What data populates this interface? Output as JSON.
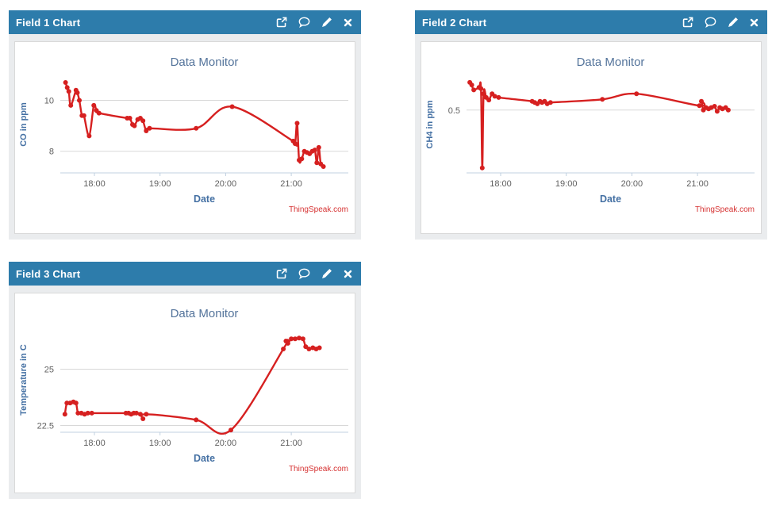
{
  "colors": {
    "header_bg": "#2d7cab",
    "header_text": "#ffffff",
    "panel_bg": "#eaecee",
    "chart_border": "#d9d9d9",
    "chart_title": "#54749b",
    "axis_title": "#4470a3",
    "tick": "#606060",
    "grid": "#d8d8d8",
    "axis": "#c0d0e0",
    "line": "#d62020",
    "credits": "#d63333"
  },
  "panels": [
    {
      "title": "Field 1 Chart",
      "icons": [
        "external-link",
        "comment",
        "edit",
        "close"
      ]
    },
    {
      "title": "Field 2 Chart",
      "icons": [
        "external-link",
        "comment",
        "edit",
        "close"
      ]
    },
    {
      "title": "Field 3 Chart",
      "icons": [
        "external-link",
        "comment",
        "edit",
        "close"
      ]
    }
  ],
  "chart_data": [
    {
      "type": "line",
      "title": "Data Monitor",
      "xlabel": "Date",
      "ylabel": "CO in ppm",
      "credits": "ThingSpeak.com",
      "x_unit": "hour_of_day_decimal",
      "xlim": [
        17.48,
        21.87
      ],
      "ylim": [
        7.15,
        10.95
      ],
      "grid": "horizontal-only",
      "legend": "none",
      "xticks": [
        {
          "v": 18,
          "label": "18:00"
        },
        {
          "v": 19,
          "label": "19:00"
        },
        {
          "v": 20,
          "label": "20:00"
        },
        {
          "v": 21,
          "label": "21:00"
        }
      ],
      "yticks": [
        {
          "v": 8,
          "label": "8"
        },
        {
          "v": 10,
          "label": "10"
        }
      ],
      "series": [
        {
          "name": "CO",
          "points": [
            [
              17.56,
              10.7
            ],
            [
              17.585,
              10.5
            ],
            [
              17.61,
              10.35
            ],
            [
              17.64,
              9.8
            ],
            [
              17.72,
              10.4
            ],
            [
              17.74,
              10.3
            ],
            [
              17.77,
              10.0
            ],
            [
              17.81,
              9.4
            ],
            [
              17.84,
              9.4
            ],
            [
              17.92,
              8.6
            ],
            [
              17.99,
              9.8
            ],
            [
              18.03,
              9.6
            ],
            [
              18.07,
              9.5
            ],
            [
              18.5,
              9.3
            ],
            [
              18.54,
              9.3
            ],
            [
              18.58,
              9.05
            ],
            [
              18.61,
              9.0
            ],
            [
              18.66,
              9.25
            ],
            [
              18.7,
              9.3
            ],
            [
              18.74,
              9.2
            ],
            [
              18.79,
              8.8
            ],
            [
              18.84,
              8.9
            ],
            [
              19.55,
              8.9
            ],
            [
              20.1,
              9.75
            ],
            [
              21.03,
              8.4
            ],
            [
              21.06,
              8.3
            ],
            [
              21.09,
              9.1
            ],
            [
              21.12,
              7.65
            ],
            [
              21.16,
              7.7
            ],
            [
              21.2,
              8.0
            ],
            [
              21.24,
              7.95
            ],
            [
              21.28,
              7.9
            ],
            [
              21.32,
              8.0
            ],
            [
              21.36,
              8.05
            ],
            [
              21.39,
              7.55
            ],
            [
              21.42,
              8.15
            ],
            [
              21.45,
              7.5
            ],
            [
              21.49,
              7.4
            ]
          ]
        }
      ]
    },
    {
      "type": "line",
      "title": "Data Monitor",
      "xlabel": "Date",
      "ylabel": "CH4 in ppm",
      "credits": "ThingSpeak.com",
      "x_unit": "hour_of_day_decimal",
      "xlim": [
        17.48,
        21.87
      ],
      "ylim": [
        0.0,
        0.77
      ],
      "grid": "horizontal-only",
      "legend": "none",
      "xticks": [
        {
          "v": 18,
          "label": "18:00"
        },
        {
          "v": 19,
          "label": "19:00"
        },
        {
          "v": 20,
          "label": "20:00"
        },
        {
          "v": 21,
          "label": "21:00"
        }
      ],
      "yticks": [
        {
          "v": 0.5,
          "label": "0.5"
        }
      ],
      "series": [
        {
          "name": "CH4",
          "points": [
            [
              17.53,
              0.72
            ],
            [
              17.56,
              0.7
            ],
            [
              17.59,
              0.66
            ],
            [
              17.67,
              0.68
            ],
            [
              17.7,
              0.67
            ],
            [
              17.72,
              0.04
            ],
            [
              17.74,
              0.63
            ],
            [
              17.78,
              0.6
            ],
            [
              17.82,
              0.58
            ],
            [
              17.87,
              0.63
            ],
            [
              17.91,
              0.61
            ],
            [
              17.97,
              0.6
            ],
            [
              18.48,
              0.57
            ],
            [
              18.52,
              0.56
            ],
            [
              18.56,
              0.55
            ],
            [
              18.6,
              0.57
            ],
            [
              18.63,
              0.56
            ],
            [
              18.67,
              0.57
            ],
            [
              18.71,
              0.55
            ],
            [
              18.76,
              0.56
            ],
            [
              19.55,
              0.585
            ],
            [
              20.07,
              0.63
            ],
            [
              21.03,
              0.535
            ],
            [
              21.06,
              0.57
            ],
            [
              21.09,
              0.5
            ],
            [
              21.13,
              0.52
            ],
            [
              21.17,
              0.51
            ],
            [
              21.21,
              0.52
            ],
            [
              21.26,
              0.53
            ],
            [
              21.3,
              0.49
            ],
            [
              21.34,
              0.52
            ],
            [
              21.38,
              0.51
            ],
            [
              21.43,
              0.52
            ],
            [
              21.47,
              0.5
            ]
          ]
        }
      ]
    },
    {
      "type": "line",
      "title": "Data Monitor",
      "xlabel": "Date",
      "ylabel": "Temperature in C",
      "credits": "ThingSpeak.com",
      "x_unit": "hour_of_day_decimal",
      "xlim": [
        17.48,
        21.87
      ],
      "ylim": [
        22.2,
        26.85
      ],
      "grid": "horizontal-only",
      "legend": "none",
      "xticks": [
        {
          "v": 18,
          "label": "18:00"
        },
        {
          "v": 19,
          "label": "19:00"
        },
        {
          "v": 20,
          "label": "20:00"
        },
        {
          "v": 21,
          "label": "21:00"
        }
      ],
      "yticks": [
        {
          "v": 22.5,
          "label": "22.5"
        },
        {
          "v": 25,
          "label": "25"
        }
      ],
      "series": [
        {
          "name": "Temperature",
          "points": [
            [
              17.55,
              23.0
            ],
            [
              17.58,
              23.5
            ],
            [
              17.63,
              23.5
            ],
            [
              17.68,
              23.55
            ],
            [
              17.72,
              23.5
            ],
            [
              17.75,
              23.05
            ],
            [
              17.8,
              23.05
            ],
            [
              17.85,
              23.0
            ],
            [
              17.9,
              23.05
            ],
            [
              17.96,
              23.05
            ],
            [
              18.48,
              23.05
            ],
            [
              18.52,
              23.05
            ],
            [
              18.56,
              23.0
            ],
            [
              18.6,
              23.05
            ],
            [
              18.64,
              23.05
            ],
            [
              18.7,
              23.0
            ],
            [
              18.74,
              22.8
            ],
            [
              18.79,
              23.0
            ],
            [
              19.55,
              22.75
            ],
            [
              20.08,
              22.3
            ],
            [
              20.88,
              25.9
            ],
            [
              20.92,
              26.25
            ],
            [
              20.95,
              26.15
            ],
            [
              21.0,
              26.35
            ],
            [
              21.06,
              26.35
            ],
            [
              21.12,
              26.38
            ],
            [
              21.18,
              26.35
            ],
            [
              21.22,
              26.0
            ],
            [
              21.27,
              25.9
            ],
            [
              21.33,
              25.95
            ],
            [
              21.38,
              25.9
            ],
            [
              21.43,
              25.95
            ]
          ]
        }
      ]
    }
  ]
}
